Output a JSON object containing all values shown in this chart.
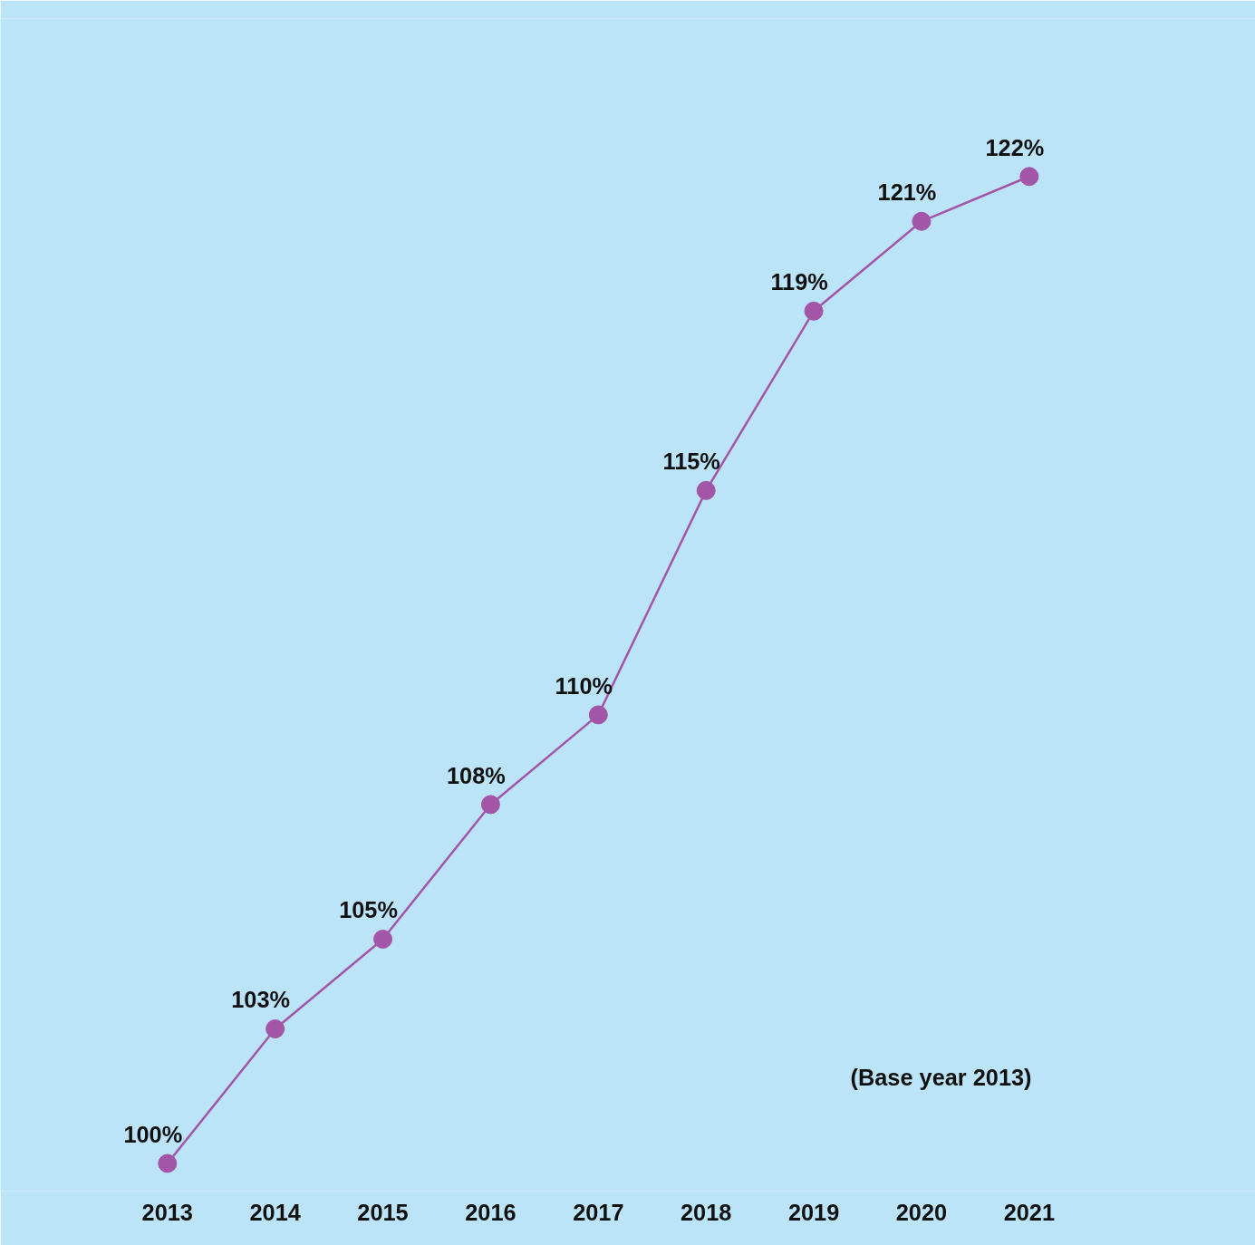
{
  "chart_data": {
    "type": "line",
    "categories": [
      "2013",
      "2014",
      "2015",
      "2016",
      "2017",
      "2018",
      "2019",
      "2020",
      "2021"
    ],
    "series": [
      {
        "color": "#a355a8",
        "values": [
          100,
          103,
          105,
          108,
          110,
          115,
          119,
          121,
          122
        ],
        "value_labels": [
          "100%",
          "103%",
          "105%",
          "108%",
          "110%",
          "115%",
          "119%",
          "121%",
          "122%"
        ]
      }
    ],
    "marker": "circle",
    "line_style": "solid",
    "grid": false,
    "tick_labels": "x",
    "annotations": [
      "(Base year 2013)"
    ]
  }
}
